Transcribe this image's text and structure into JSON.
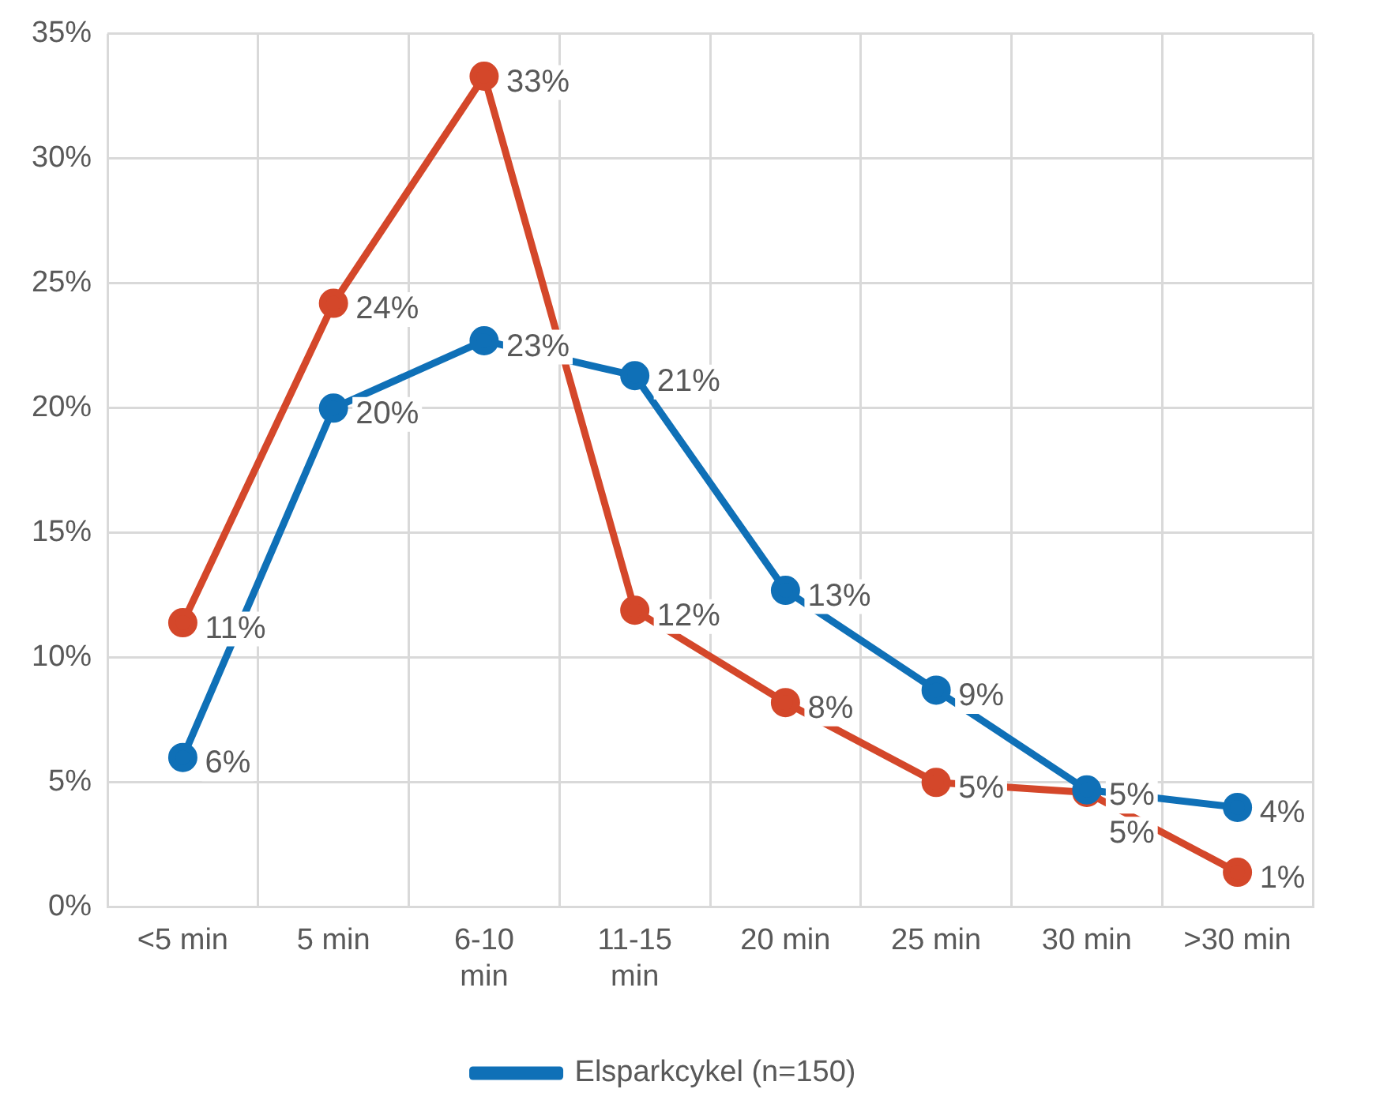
{
  "chart_data": {
    "type": "line",
    "categories": [
      "<5 min",
      "5 min",
      "6-10 min",
      "11-15 min",
      "20 min",
      "25 min",
      "30 min",
      ">30 min"
    ],
    "series": [
      {
        "name": "Elsparkcykel (n=150)",
        "color": "#0f70b7",
        "values": [
          6,
          20,
          22.7,
          21.3,
          12.7,
          8.7,
          4.7,
          4.0
        ],
        "value_labels": [
          "6%",
          "20%",
          "23%",
          "21%",
          "13%",
          "9%",
          "5%",
          "4%"
        ]
      },
      {
        "color": "#d4472a",
        "values": [
          11.4,
          24.2,
          33.3,
          11.9,
          8.2,
          5.0,
          4.6,
          1.4
        ],
        "value_labels": [
          "11%",
          "24%",
          "33%",
          "12%",
          "8%",
          "5%",
          "5%",
          "1%"
        ]
      }
    ],
    "ylim": [
      0,
      35
    ],
    "yticks": [
      {
        "value": 0,
        "label": "0%"
      },
      {
        "value": 5,
        "label": "5%"
      },
      {
        "value": 10,
        "label": "10%"
      },
      {
        "value": 15,
        "label": "15%"
      },
      {
        "value": 20,
        "label": "20%"
      },
      {
        "value": 25,
        "label": "25%"
      },
      {
        "value": 30,
        "label": "30%"
      },
      {
        "value": 35,
        "label": "35%"
      }
    ],
    "grid": true,
    "legend": "bottom",
    "marker": "circle",
    "line_style": "solid"
  }
}
